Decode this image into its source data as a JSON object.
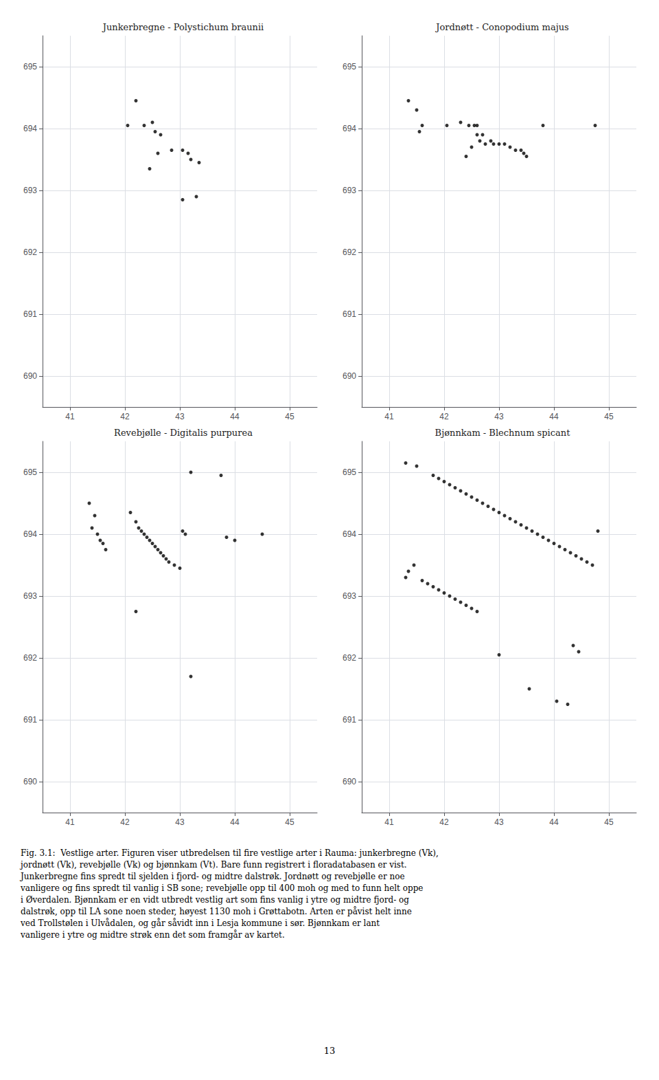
{
  "chart_data": [
    {
      "type": "scatter",
      "title": "Junkerbregne - Polystichum braunii",
      "x": [
        42.2,
        42.05,
        42.35,
        42.5,
        42.55,
        42.65,
        42.6,
        42.85,
        43.05,
        43.15,
        43.2,
        43.35,
        43.05,
        42.45,
        43.3
      ],
      "values": [
        694.45,
        694.05,
        694.05,
        694.1,
        693.95,
        693.9,
        693.6,
        693.65,
        693.65,
        693.6,
        693.5,
        693.45,
        692.85,
        693.35,
        692.9
      ],
      "color": "#000000",
      "xlim": [
        40.5,
        45.5
      ],
      "ylim": [
        689.5,
        695.5
      ],
      "xticks": [
        41,
        42,
        43,
        44,
        45
      ],
      "yticks": [
        690,
        691,
        692,
        693,
        694,
        695
      ],
      "grid": true
    },
    {
      "type": "scatter",
      "title": "Jordnøtt - Conopodium majus",
      "x": [
        41.35,
        41.5,
        41.6,
        41.55,
        42.05,
        42.3,
        42.45,
        42.55,
        42.6,
        42.6,
        42.7,
        42.65,
        42.75,
        42.85,
        42.9,
        43.0,
        43.1,
        43.2,
        43.3,
        43.4,
        43.45,
        43.5,
        42.5,
        42.4,
        43.8,
        44.75
      ],
      "values": [
        694.45,
        694.3,
        694.05,
        693.95,
        694.05,
        694.1,
        694.05,
        694.05,
        694.05,
        693.9,
        693.9,
        693.8,
        693.75,
        693.8,
        693.75,
        693.75,
        693.75,
        693.7,
        693.65,
        693.65,
        693.6,
        693.55,
        693.7,
        693.55,
        694.05,
        694.05
      ],
      "color": "#000000",
      "xlim": [
        40.5,
        45.5
      ],
      "ylim": [
        689.5,
        695.5
      ],
      "xticks": [
        41,
        42,
        43,
        44,
        45
      ],
      "yticks": [
        690,
        691,
        692,
        693,
        694,
        695
      ],
      "grid": true
    },
    {
      "type": "scatter",
      "title": "Revebjølle - Digitalis purpurea",
      "x": [
        41.35,
        41.45,
        41.4,
        41.5,
        41.55,
        41.6,
        41.65,
        42.1,
        42.2,
        42.25,
        42.3,
        42.35,
        42.4,
        42.45,
        42.5,
        42.55,
        42.6,
        42.65,
        42.7,
        42.75,
        42.8,
        42.9,
        43.0,
        43.05,
        43.1,
        43.2,
        43.75,
        43.85,
        44.0,
        44.5,
        42.2,
        43.2
      ],
      "values": [
        694.5,
        694.3,
        694.1,
        694.0,
        693.9,
        693.85,
        693.75,
        694.35,
        694.2,
        694.1,
        694.05,
        694.0,
        693.95,
        693.9,
        693.85,
        693.8,
        693.75,
        693.7,
        693.65,
        693.6,
        693.55,
        693.5,
        693.45,
        694.05,
        694.0,
        695.0,
        694.95,
        693.95,
        693.9,
        694.0,
        692.75,
        691.7
      ],
      "color": "#000000",
      "xlim": [
        40.5,
        45.5
      ],
      "ylim": [
        689.5,
        695.5
      ],
      "xticks": [
        41,
        42,
        43,
        44,
        45
      ],
      "yticks": [
        690,
        691,
        692,
        693,
        694,
        695
      ],
      "grid": true
    },
    {
      "type": "scatter",
      "title": "Bjønnkam - Blechnum spicant",
      "x": [
        41.3,
        41.5,
        41.8,
        41.9,
        42.0,
        42.1,
        42.2,
        42.3,
        42.4,
        42.5,
        42.6,
        42.7,
        42.8,
        42.9,
        43.0,
        43.1,
        43.2,
        43.3,
        43.4,
        43.5,
        43.6,
        43.7,
        43.8,
        43.9,
        44.0,
        44.1,
        44.2,
        44.3,
        44.4,
        44.5,
        44.6,
        44.7,
        44.8,
        41.45,
        41.35,
        41.3,
        41.6,
        41.7,
        41.8,
        41.9,
        42.0,
        42.1,
        42.2,
        42.3,
        42.4,
        42.5,
        42.6,
        43.0,
        43.55,
        44.05,
        44.25,
        44.35,
        44.45
      ],
      "values": [
        695.15,
        695.1,
        694.95,
        694.9,
        694.85,
        694.8,
        694.75,
        694.7,
        694.65,
        694.6,
        694.55,
        694.5,
        694.45,
        694.4,
        694.35,
        694.3,
        694.25,
        694.2,
        694.15,
        694.1,
        694.05,
        694.0,
        693.95,
        693.9,
        693.85,
        693.8,
        693.75,
        693.7,
        693.65,
        693.6,
        693.55,
        693.5,
        694.05,
        693.5,
        693.4,
        693.3,
        693.25,
        693.2,
        693.15,
        693.1,
        693.05,
        693.0,
        692.95,
        692.9,
        692.85,
        692.8,
        692.75,
        692.05,
        691.5,
        691.3,
        691.25,
        692.2,
        692.1
      ],
      "color": "#000000",
      "xlim": [
        40.5,
        45.5
      ],
      "ylim": [
        689.5,
        695.5
      ],
      "xticks": [
        41,
        42,
        43,
        44,
        45
      ],
      "yticks": [
        690,
        691,
        692,
        693,
        694,
        695
      ],
      "grid": true,
      "annotations": [
        "Fig. 3.1:  Vestlige arter. Figuren viser utbredelsen til fire vestlige arter i Rauma: junkerbregne (Vk),\njordnøtt (Vk), revebjølle (Vk) og bjønnkam (Vt). Bare funn registrert i floradatabasen er vist.\nJunkerbregne fins spredt til sjelden i fjord- og midtre dalstrøk. Jordnøtt og revebjølle er noe\nvanligere og fins spredt til vanlig i SB sone; revebjølle opp til 400 moh og med to funn helt oppe\ni Øverdalen. Bjønnkam er en vidt utbredt vestlig art som fins vanlig i ytre og midtre fjord- og\ndalstrøk, opp til LA sone noen steder, høyest 1130 moh i Grøttabotn. Arten er påvist helt inne\nved Trollstølen i Ulvådalen, og går såvidt inn i Lesja kommune i sør. Bjønnkam er lant\nvanligere i ytre og midtre strøk enn det som framgår av kartet.",
        "13"
      ]
    }
  ]
}
